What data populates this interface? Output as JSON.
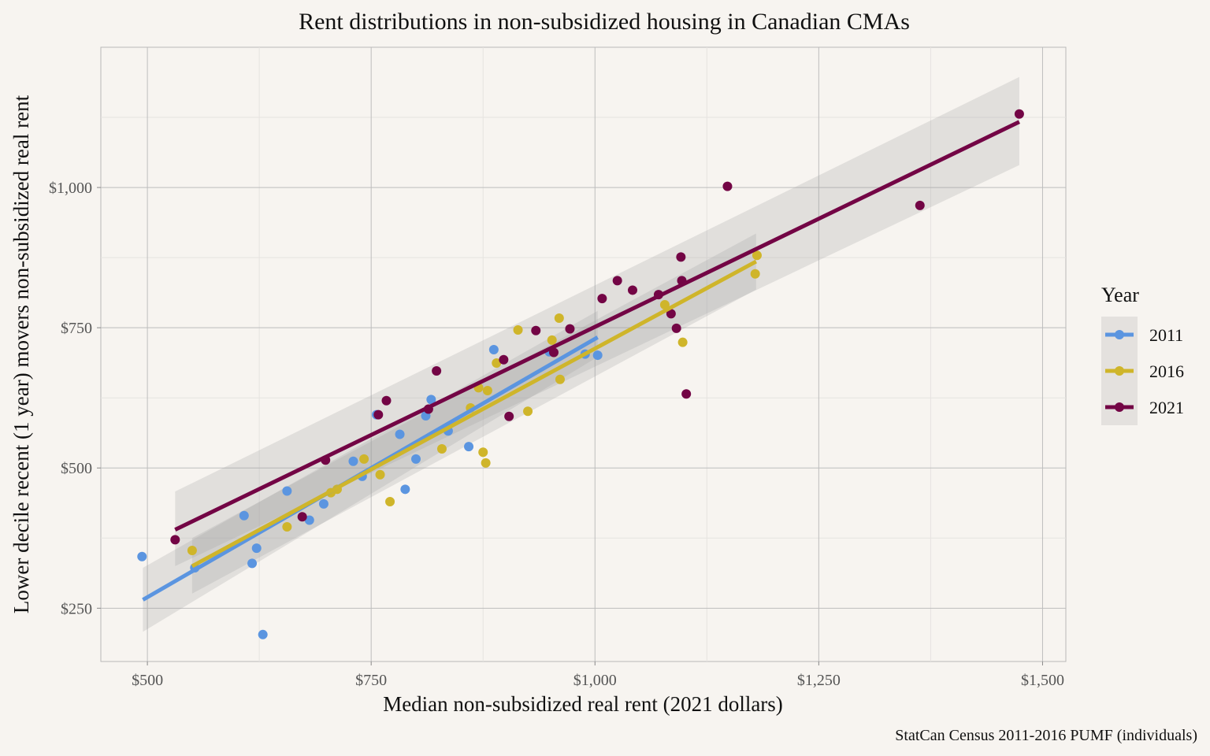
{
  "chart_data": {
    "type": "scatter",
    "title": "Rent distributions in non-subsidized housing in Canadian CMAs",
    "xlabel": "Median non-subsidized real rent (2021 dollars)",
    "ylabel": "Lower decile recent (1 year) movers non-subsidized real rent",
    "caption": "StatCan Census 2011-2016 PUMF (individuals)",
    "xlim": [
      448,
      1526
    ],
    "ylim": [
      155,
      1250
    ],
    "x_ticks": [
      500,
      750,
      1000,
      1250,
      1500
    ],
    "x_tick_labels": [
      "$500",
      "$750",
      "$1,000",
      "$1,250",
      "$1,500"
    ],
    "y_ticks": [
      250,
      500,
      750,
      1000
    ],
    "y_tick_labels": [
      "$250",
      "$500",
      "$750",
      "$1,000"
    ],
    "grid": true,
    "legend": {
      "title": "Year",
      "position": "right"
    },
    "smoothing": "linear fit with confidence band",
    "series": [
      {
        "name": "2011",
        "color": "#5b95e0",
        "fit": {
          "x": [
            495,
            1003
          ],
          "y": [
            265,
            733
          ],
          "lower": [
            208,
            698
          ],
          "upper": [
            322,
            780
          ]
        },
        "points": [
          [
            494,
            342
          ],
          [
            553,
            322
          ],
          [
            608,
            415
          ],
          [
            617,
            330
          ],
          [
            622,
            357
          ],
          [
            629,
            203
          ],
          [
            656,
            459
          ],
          [
            681,
            407
          ],
          [
            697,
            436
          ],
          [
            730,
            512
          ],
          [
            740,
            485
          ],
          [
            756,
            595
          ],
          [
            782,
            560
          ],
          [
            788,
            462
          ],
          [
            800,
            516
          ],
          [
            811,
            593
          ],
          [
            817,
            622
          ],
          [
            836,
            566
          ],
          [
            859,
            538
          ],
          [
            887,
            711
          ],
          [
            949,
            707
          ],
          [
            989,
            703
          ],
          [
            1003,
            701
          ]
        ]
      },
      {
        "name": "2016",
        "color": "#cfb52a",
        "fit": {
          "x": [
            550,
            1180
          ],
          "y": [
            325,
            868
          ],
          "lower": [
            276,
            818
          ],
          "upper": [
            375,
            918
          ]
        },
        "points": [
          [
            550,
            353
          ],
          [
            656,
            395
          ],
          [
            705,
            456
          ],
          [
            712,
            462
          ],
          [
            742,
            516
          ],
          [
            760,
            488
          ],
          [
            771,
            440
          ],
          [
            829,
            534
          ],
          [
            861,
            607
          ],
          [
            870,
            643
          ],
          [
            875,
            528
          ],
          [
            878,
            509
          ],
          [
            880,
            638
          ],
          [
            890,
            687
          ],
          [
            914,
            746
          ],
          [
            925,
            601
          ],
          [
            952,
            728
          ],
          [
            960,
            767
          ],
          [
            961,
            658
          ],
          [
            1078,
            791
          ],
          [
            1098,
            724
          ],
          [
            1179,
            846
          ],
          [
            1181,
            879
          ]
        ]
      },
      {
        "name": "2021",
        "color": "#730545",
        "fit": {
          "x": [
            531,
            1474
          ],
          "y": [
            390,
            1117
          ],
          "lower": [
            325,
            1040
          ],
          "upper": [
            458,
            1197
          ]
        },
        "points": [
          [
            531,
            372
          ],
          [
            673,
            413
          ],
          [
            699,
            514
          ],
          [
            758,
            595
          ],
          [
            767,
            620
          ],
          [
            814,
            605
          ],
          [
            823,
            673
          ],
          [
            898,
            693
          ],
          [
            904,
            592
          ],
          [
            934,
            745
          ],
          [
            954,
            706
          ],
          [
            972,
            748
          ],
          [
            1008,
            802
          ],
          [
            1025,
            834
          ],
          [
            1042,
            817
          ],
          [
            1071,
            809
          ],
          [
            1085,
            775
          ],
          [
            1091,
            749
          ],
          [
            1096,
            876
          ],
          [
            1097,
            834
          ],
          [
            1102,
            632
          ],
          [
            1148,
            1002
          ],
          [
            1363,
            968
          ],
          [
            1474,
            1131
          ]
        ]
      }
    ]
  }
}
